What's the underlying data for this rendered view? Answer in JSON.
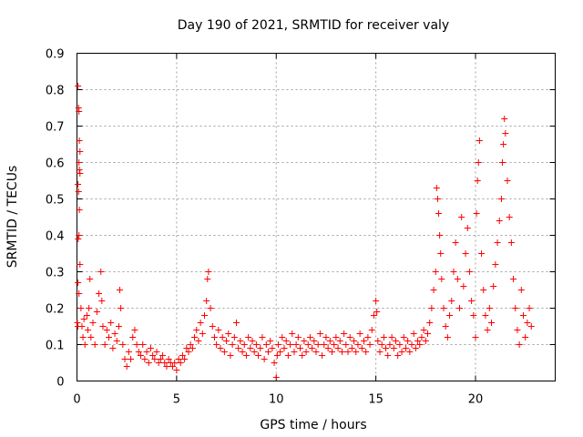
{
  "chart_data": {
    "type": "scatter",
    "title": "Day 190 of 2021, SRMTID for receiver valy",
    "xlabel": "GPS time / hours",
    "ylabel": "SRMTID / TECUs",
    "xlim": [
      0,
      24
    ],
    "ylim": [
      0,
      0.9
    ],
    "xticks": [
      0,
      5,
      10,
      15,
      20
    ],
    "yticks": [
      0,
      0.1,
      0.2,
      0.3,
      0.4,
      0.5,
      0.6,
      0.7,
      0.8,
      0.9
    ],
    "xtick_labels": [
      "0",
      "5",
      "10",
      "15",
      "20"
    ],
    "ytick_labels": [
      "0",
      "0.1",
      "0.2",
      "0.3",
      "0.4",
      "0.5",
      "0.6",
      "0.7",
      "0.8",
      "0.9"
    ],
    "grid": true,
    "marker": "+",
    "color": "#ff0000",
    "series": [
      {
        "name": "SRMTID",
        "points": [
          [
            0.05,
            0.81
          ],
          [
            0.08,
            0.75
          ],
          [
            0.1,
            0.74
          ],
          [
            0.12,
            0.66
          ],
          [
            0.15,
            0.63
          ],
          [
            0.1,
            0.6
          ],
          [
            0.12,
            0.58
          ],
          [
            0.15,
            0.57
          ],
          [
            0.05,
            0.54
          ],
          [
            0.08,
            0.52
          ],
          [
            0.12,
            0.47
          ],
          [
            0.06,
            0.39
          ],
          [
            0.1,
            0.4
          ],
          [
            0.15,
            0.32
          ],
          [
            0.05,
            0.27
          ],
          [
            0.1,
            0.24
          ],
          [
            0.02,
            0.16
          ],
          [
            0.05,
            0.15
          ],
          [
            0.2,
            0.2
          ],
          [
            0.25,
            0.15
          ],
          [
            0.3,
            0.12
          ],
          [
            0.35,
            0.17
          ],
          [
            0.4,
            0.1
          ],
          [
            0.5,
            0.18
          ],
          [
            0.55,
            0.14
          ],
          [
            0.6,
            0.2
          ],
          [
            0.65,
            0.28
          ],
          [
            0.7,
            0.12
          ],
          [
            0.8,
            0.16
          ],
          [
            0.9,
            0.1
          ],
          [
            1.0,
            0.19
          ],
          [
            1.1,
            0.24
          ],
          [
            1.2,
            0.3
          ],
          [
            1.25,
            0.22
          ],
          [
            1.3,
            0.15
          ],
          [
            1.4,
            0.1
          ],
          [
            1.5,
            0.14
          ],
          [
            1.6,
            0.12
          ],
          [
            1.7,
            0.16
          ],
          [
            1.8,
            0.09
          ],
          [
            1.9,
            0.13
          ],
          [
            2.0,
            0.11
          ],
          [
            2.1,
            0.15
          ],
          [
            2.15,
            0.25
          ],
          [
            2.2,
            0.2
          ],
          [
            2.3,
            0.1
          ],
          [
            2.4,
            0.06
          ],
          [
            2.5,
            0.04
          ],
          [
            2.6,
            0.08
          ],
          [
            2.7,
            0.06
          ],
          [
            2.8,
            0.12
          ],
          [
            2.9,
            0.14
          ],
          [
            3.0,
            0.1
          ],
          [
            3.1,
            0.08
          ],
          [
            3.2,
            0.07
          ],
          [
            3.3,
            0.1
          ],
          [
            3.4,
            0.06
          ],
          [
            3.5,
            0.08
          ],
          [
            3.6,
            0.05
          ],
          [
            3.7,
            0.09
          ],
          [
            3.8,
            0.07
          ],
          [
            3.9,
            0.06
          ],
          [
            4.0,
            0.08
          ],
          [
            4.1,
            0.05
          ],
          [
            4.2,
            0.06
          ],
          [
            4.3,
            0.07
          ],
          [
            4.4,
            0.05
          ],
          [
            4.5,
            0.04
          ],
          [
            4.6,
            0.06
          ],
          [
            4.7,
            0.05
          ],
          [
            4.8,
            0.04
          ],
          [
            4.9,
            0.05
          ],
          [
            5.0,
            0.03
          ],
          [
            5.1,
            0.06
          ],
          [
            5.2,
            0.05
          ],
          [
            5.3,
            0.07
          ],
          [
            5.4,
            0.06
          ],
          [
            5.5,
            0.09
          ],
          [
            5.6,
            0.08
          ],
          [
            5.7,
            0.1
          ],
          [
            5.8,
            0.09
          ],
          [
            5.9,
            0.12
          ],
          [
            6.0,
            0.14
          ],
          [
            6.1,
            0.11
          ],
          [
            6.2,
            0.16
          ],
          [
            6.3,
            0.13
          ],
          [
            6.4,
            0.18
          ],
          [
            6.5,
            0.22
          ],
          [
            6.55,
            0.28
          ],
          [
            6.6,
            0.3
          ],
          [
            6.7,
            0.2
          ],
          [
            6.8,
            0.15
          ],
          [
            6.9,
            0.12
          ],
          [
            7.0,
            0.1
          ],
          [
            7.1,
            0.14
          ],
          [
            7.2,
            0.09
          ],
          [
            7.3,
            0.12
          ],
          [
            7.4,
            0.08
          ],
          [
            7.5,
            0.11
          ],
          [
            7.6,
            0.13
          ],
          [
            7.7,
            0.07
          ],
          [
            7.8,
            0.1
          ],
          [
            7.9,
            0.12
          ],
          [
            8.0,
            0.16
          ],
          [
            8.1,
            0.09
          ],
          [
            8.2,
            0.11
          ],
          [
            8.3,
            0.08
          ],
          [
            8.4,
            0.1
          ],
          [
            8.5,
            0.07
          ],
          [
            8.6,
            0.12
          ],
          [
            8.7,
            0.09
          ],
          [
            8.8,
            0.11
          ],
          [
            8.9,
            0.08
          ],
          [
            9.0,
            0.1
          ],
          [
            9.1,
            0.07
          ],
          [
            9.2,
            0.09
          ],
          [
            9.3,
            0.12
          ],
          [
            9.4,
            0.06
          ],
          [
            9.5,
            0.1
          ],
          [
            9.6,
            0.08
          ],
          [
            9.7,
            0.11
          ],
          [
            9.8,
            0.09
          ],
          [
            9.9,
            0.05
          ],
          [
            10.0,
            0.01
          ],
          [
            10.05,
            0.07
          ],
          [
            10.1,
            0.1
          ],
          [
            10.2,
            0.08
          ],
          [
            10.3,
            0.12
          ],
          [
            10.4,
            0.09
          ],
          [
            10.5,
            0.11
          ],
          [
            10.6,
            0.07
          ],
          [
            10.7,
            0.1
          ],
          [
            10.8,
            0.13
          ],
          [
            10.9,
            0.08
          ],
          [
            11.0,
            0.1
          ],
          [
            11.1,
            0.12
          ],
          [
            11.2,
            0.09
          ],
          [
            11.3,
            0.07
          ],
          [
            11.4,
            0.11
          ],
          [
            11.5,
            0.08
          ],
          [
            11.6,
            0.1
          ],
          [
            11.7,
            0.12
          ],
          [
            11.8,
            0.09
          ],
          [
            11.9,
            0.11
          ],
          [
            12.0,
            0.08
          ],
          [
            12.1,
            0.1
          ],
          [
            12.2,
            0.13
          ],
          [
            12.3,
            0.07
          ],
          [
            12.4,
            0.1
          ],
          [
            12.5,
            0.12
          ],
          [
            12.6,
            0.09
          ],
          [
            12.7,
            0.11
          ],
          [
            12.8,
            0.08
          ],
          [
            12.9,
            0.1
          ],
          [
            13.0,
            0.12
          ],
          [
            13.1,
            0.09
          ],
          [
            13.2,
            0.11
          ],
          [
            13.3,
            0.08
          ],
          [
            13.4,
            0.13
          ],
          [
            13.5,
            0.1
          ],
          [
            13.6,
            0.08
          ],
          [
            13.7,
            0.12
          ],
          [
            13.8,
            0.09
          ],
          [
            13.9,
            0.11
          ],
          [
            14.0,
            0.08
          ],
          [
            14.1,
            0.1
          ],
          [
            14.2,
            0.13
          ],
          [
            14.3,
            0.09
          ],
          [
            14.4,
            0.11
          ],
          [
            14.5,
            0.08
          ],
          [
            14.6,
            0.12
          ],
          [
            14.7,
            0.1
          ],
          [
            14.8,
            0.14
          ],
          [
            14.9,
            0.18
          ],
          [
            15.0,
            0.22
          ],
          [
            15.05,
            0.19
          ],
          [
            15.1,
            0.11
          ],
          [
            15.2,
            0.08
          ],
          [
            15.3,
            0.1
          ],
          [
            15.4,
            0.12
          ],
          [
            15.5,
            0.09
          ],
          [
            15.6,
            0.07
          ],
          [
            15.7,
            0.1
          ],
          [
            15.8,
            0.12
          ],
          [
            15.9,
            0.09
          ],
          [
            16.0,
            0.11
          ],
          [
            16.1,
            0.07
          ],
          [
            16.2,
            0.1
          ],
          [
            16.3,
            0.08
          ],
          [
            16.4,
            0.12
          ],
          [
            16.5,
            0.09
          ],
          [
            16.6,
            0.11
          ],
          [
            16.7,
            0.08
          ],
          [
            16.8,
            0.1
          ],
          [
            16.9,
            0.13
          ],
          [
            17.0,
            0.09
          ],
          [
            17.1,
            0.11
          ],
          [
            17.2,
            0.1
          ],
          [
            17.3,
            0.12
          ],
          [
            17.4,
            0.14
          ],
          [
            17.5,
            0.11
          ],
          [
            17.6,
            0.13
          ],
          [
            17.7,
            0.16
          ],
          [
            17.8,
            0.2
          ],
          [
            17.9,
            0.25
          ],
          [
            18.0,
            0.3
          ],
          [
            18.05,
            0.53
          ],
          [
            18.1,
            0.5
          ],
          [
            18.15,
            0.46
          ],
          [
            18.2,
            0.4
          ],
          [
            18.25,
            0.35
          ],
          [
            18.3,
            0.28
          ],
          [
            18.4,
            0.2
          ],
          [
            18.5,
            0.15
          ],
          [
            18.6,
            0.12
          ],
          [
            18.7,
            0.18
          ],
          [
            18.8,
            0.22
          ],
          [
            18.9,
            0.3
          ],
          [
            19.0,
            0.38
          ],
          [
            19.1,
            0.28
          ],
          [
            19.2,
            0.2
          ],
          [
            19.3,
            0.45
          ],
          [
            19.4,
            0.26
          ],
          [
            19.5,
            0.35
          ],
          [
            19.6,
            0.42
          ],
          [
            19.7,
            0.3
          ],
          [
            19.8,
            0.22
          ],
          [
            19.9,
            0.18
          ],
          [
            20.0,
            0.12
          ],
          [
            20.05,
            0.46
          ],
          [
            20.1,
            0.55
          ],
          [
            20.15,
            0.6
          ],
          [
            20.2,
            0.66
          ],
          [
            20.3,
            0.35
          ],
          [
            20.4,
            0.25
          ],
          [
            20.5,
            0.18
          ],
          [
            20.6,
            0.14
          ],
          [
            20.7,
            0.2
          ],
          [
            20.8,
            0.16
          ],
          [
            20.9,
            0.26
          ],
          [
            21.0,
            0.32
          ],
          [
            21.1,
            0.38
          ],
          [
            21.2,
            0.44
          ],
          [
            21.3,
            0.5
          ],
          [
            21.35,
            0.6
          ],
          [
            21.4,
            0.65
          ],
          [
            21.45,
            0.72
          ],
          [
            21.5,
            0.68
          ],
          [
            21.6,
            0.55
          ],
          [
            21.7,
            0.45
          ],
          [
            21.8,
            0.38
          ],
          [
            21.9,
            0.28
          ],
          [
            22.0,
            0.2
          ],
          [
            22.1,
            0.14
          ],
          [
            22.2,
            0.1
          ],
          [
            22.3,
            0.25
          ],
          [
            22.4,
            0.18
          ],
          [
            22.5,
            0.12
          ],
          [
            22.6,
            0.16
          ],
          [
            22.7,
            0.2
          ],
          [
            22.8,
            0.15
          ]
        ]
      }
    ]
  }
}
